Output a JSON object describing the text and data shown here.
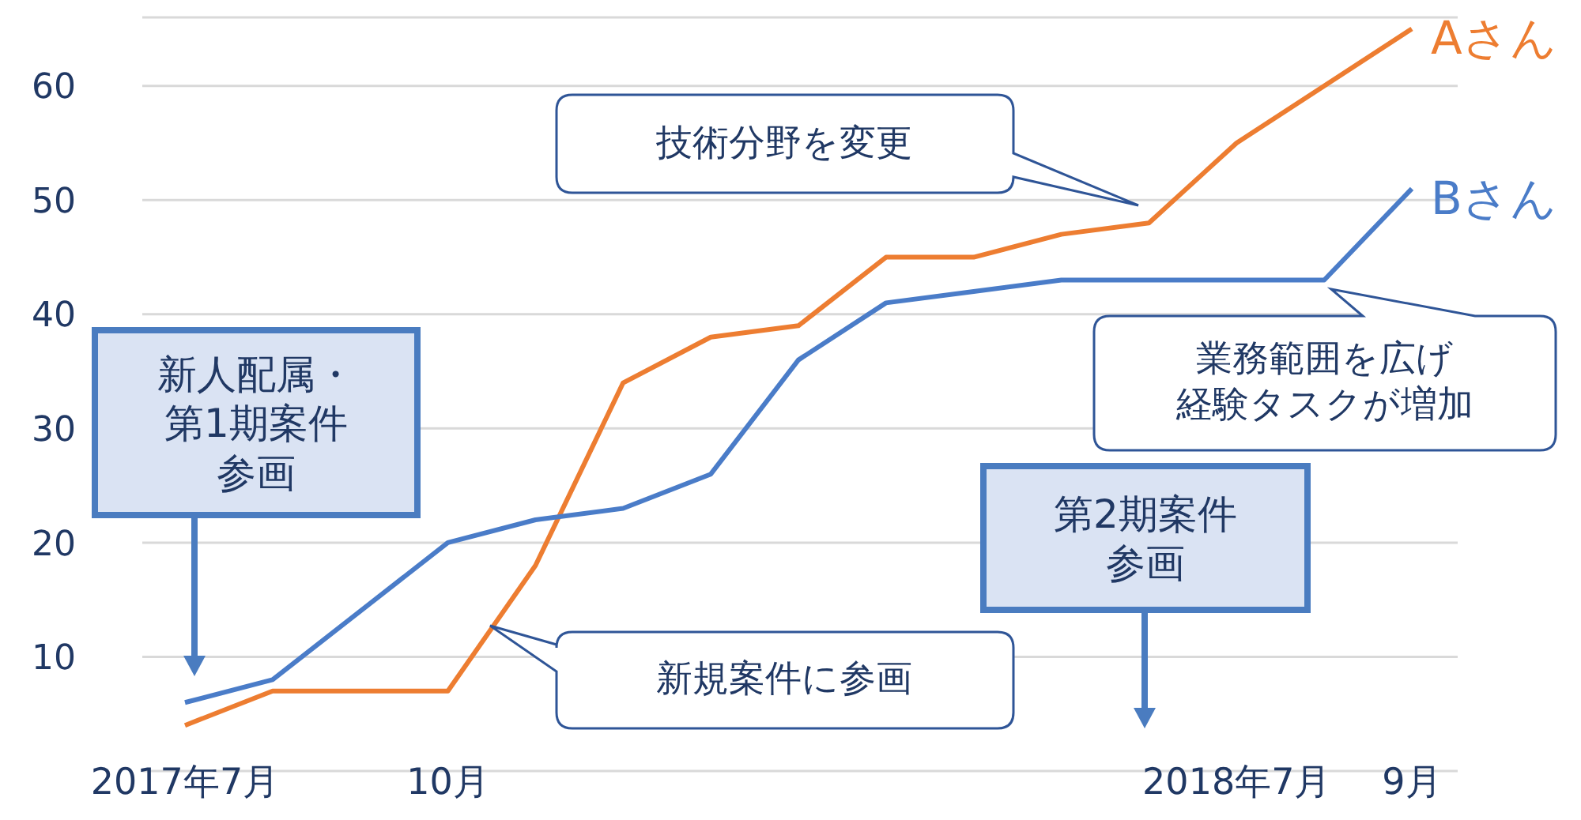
{
  "chart_data": {
    "type": "line",
    "categories": [
      "2017年7月",
      null,
      null,
      "10月",
      null,
      null,
      null,
      null,
      null,
      null,
      null,
      null,
      "2018年7月",
      null,
      "9月"
    ],
    "series": [
      {
        "name": "Aさん",
        "color": "#ed7d31",
        "values": [
          4,
          7,
          7,
          7,
          18,
          34,
          38,
          39,
          45,
          45,
          47,
          48,
          55,
          60,
          65
        ]
      },
      {
        "name": "Bさん",
        "color": "#4a7cc8",
        "values": [
          6,
          8,
          14,
          20,
          22,
          23,
          26,
          36,
          41,
          42,
          43,
          43,
          43,
          43,
          51
        ]
      }
    ],
    "ylim": [
      0,
      66
    ],
    "yticks": [
      {
        "value": 0,
        "label": null
      },
      10,
      20,
      30,
      40,
      50,
      60
    ],
    "grid": "y",
    "marker": "none",
    "annotations": [
      "技術分野を変更",
      "業務範囲を広げ経験タスクが増加",
      "新規案件に参画",
      "新人配属・第1期案件参画",
      "第2期案件参画"
    ]
  }
}
